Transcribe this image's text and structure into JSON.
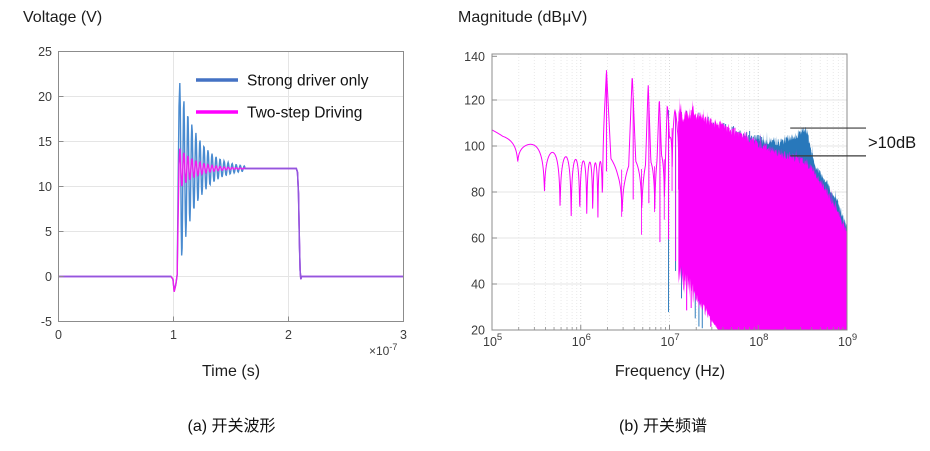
{
  "page": {
    "background": "#ffffff"
  },
  "captions": {
    "a": "(a) 开关波形",
    "b": "(b) 开关频谱"
  },
  "chart_data": [
    {
      "id": "waveform",
      "type": "line",
      "title": "Voltage (V)",
      "xlabel": "Time (s)",
      "x_exponent_label": {
        "base": "×10",
        "exp": "-7"
      },
      "xlim": [
        0,
        3
      ],
      "ylim": [
        -5,
        25
      ],
      "x_ticks": [
        0,
        1,
        2,
        3
      ],
      "y_ticks": [
        -5,
        0,
        5,
        10,
        15,
        20,
        25
      ],
      "grid": true,
      "legend_position": "top-right-inside",
      "overlap_color": "#9257dd",
      "series": [
        {
          "name": "Strong driver only",
          "legend_color": "#4472c4",
          "wave_color": "#4a8bd0",
          "steady_v": 12,
          "peak_v": 21.5,
          "undershoot_v": -1.6,
          "rise_t": 1.04,
          "fall_t": 2.09,
          "ring_period": 0.035,
          "ring_tau": 0.16,
          "ring_amp": 9.5,
          "extra_dip": 1.8
        },
        {
          "name": "Two-step Driving",
          "legend_color": "#ff00ff",
          "wave_color": "#ee1cee",
          "steady_v": 12,
          "peak_v": 14.2,
          "undershoot_v": -1.7,
          "rise_t": 1.04,
          "fall_t": 2.09,
          "ring_period": 0.035,
          "ring_tau": 0.15,
          "ring_amp": 2.25,
          "extra_dip": 0
        }
      ]
    },
    {
      "id": "spectrum",
      "type": "line",
      "title": "Magnitude (dBμV)",
      "xlabel": "Frequency (Hz)",
      "x_scale": "log",
      "xlim_exp": [
        5,
        9
      ],
      "ylim": [
        20,
        140
      ],
      "x_tick_exponents": [
        5,
        6,
        7,
        8,
        9
      ],
      "y_ticks": [
        20,
        40,
        60,
        80,
        100,
        120,
        140
      ],
      "grid": true,
      "fundamental_hz": 1950000,
      "lobe_null_spacing_hz": 195000,
      "harmonic_peaks_db": [
        133,
        131,
        127,
        121,
        119,
        117
      ],
      "annotation": {
        "label": ">10dB",
        "upper_db": 107.8,
        "lower_db": 95.7,
        "start_logf": 8.36
      },
      "series": [
        {
          "name": "Strong driver only",
          "color": "#2878bb",
          "envelope_top": [
            [
              7.0,
              115
            ],
            [
              7.15,
              113.5
            ],
            [
              7.3,
              112
            ],
            [
              7.45,
              110
            ],
            [
              7.6,
              108
            ],
            [
              7.75,
              106
            ],
            [
              7.9,
              104
            ],
            [
              8.0,
              102.5
            ],
            [
              8.08,
              102
            ],
            [
              8.16,
              102.5
            ],
            [
              8.24,
              101.5
            ],
            [
              8.3,
              102.5
            ],
            [
              8.36,
              103.5
            ],
            [
              8.42,
              104.5
            ],
            [
              8.47,
              105.5
            ],
            [
              8.51,
              107
            ],
            [
              8.535,
              107.8
            ],
            [
              8.56,
              105
            ],
            [
              8.59,
              99
            ],
            [
              8.62,
              94.5
            ],
            [
              8.65,
              91
            ],
            [
              8.69,
              88.5
            ],
            [
              8.73,
              86.5
            ],
            [
              8.77,
              84
            ],
            [
              8.8,
              82
            ],
            [
              8.82,
              80.5
            ],
            [
              8.85,
              78
            ],
            [
              8.88,
              76.5
            ],
            [
              8.9,
              74.5
            ],
            [
              8.93,
              71.5
            ],
            [
              8.96,
              68.5
            ],
            [
              9.0,
              63.5
            ]
          ]
        },
        {
          "name": "Two-step Driving",
          "color": "#fb02fb",
          "envelope_top": [
            [
              5.0,
              107
            ],
            [
              5.12,
              104.5
            ],
            [
              5.3,
              103
            ],
            [
              5.5,
              100
            ],
            [
              5.7,
              97
            ],
            [
              5.9,
              94.5
            ],
            [
              6.1,
              93
            ],
            [
              6.2,
              92.5
            ],
            [
              6.24,
              94
            ],
            [
              6.29,
              133
            ],
            [
              6.34,
              95
            ],
            [
              6.42,
              92
            ],
            [
              6.5,
              91.5
            ],
            [
              6.54,
              93
            ],
            [
              6.58,
              131
            ],
            [
              6.62,
              94
            ],
            [
              6.7,
              91.5
            ],
            [
              6.73,
              94
            ],
            [
              6.76,
              127
            ],
            [
              6.79,
              94
            ],
            [
              6.84,
              93
            ],
            [
              6.86,
              97
            ],
            [
              6.885,
              121
            ],
            [
              6.91,
              97
            ],
            [
              6.95,
              96
            ],
            [
              6.975,
              119
            ],
            [
              7.0,
              104
            ],
            [
              7.03,
              110
            ],
            [
              7.06,
              116
            ],
            [
              7.09,
              110
            ],
            [
              7.12,
              117
            ],
            [
              7.15,
              111
            ],
            [
              7.18,
              115
            ],
            [
              7.22,
              112
            ],
            [
              7.26,
              117
            ],
            [
              7.3,
              112
            ],
            [
              7.35,
              114
            ],
            [
              7.4,
              111.5
            ],
            [
              7.5,
              110
            ],
            [
              7.6,
              108.5
            ],
            [
              7.7,
              106.5
            ],
            [
              7.8,
              105
            ],
            [
              7.9,
              103
            ],
            [
              8.0,
              101
            ],
            [
              8.1,
              99.5
            ],
            [
              8.2,
              97.5
            ],
            [
              8.3,
              96
            ],
            [
              8.4,
              95
            ],
            [
              8.5,
              94
            ],
            [
              8.56,
              92.5
            ],
            [
              8.62,
              89.5
            ],
            [
              8.68,
              86
            ],
            [
              8.74,
              82.5
            ],
            [
              8.8,
              78.5
            ],
            [
              8.86,
              74
            ],
            [
              8.92,
              69.5
            ],
            [
              8.96,
              65.5
            ],
            [
              9.0,
              62
            ]
          ]
        }
      ]
    }
  ]
}
